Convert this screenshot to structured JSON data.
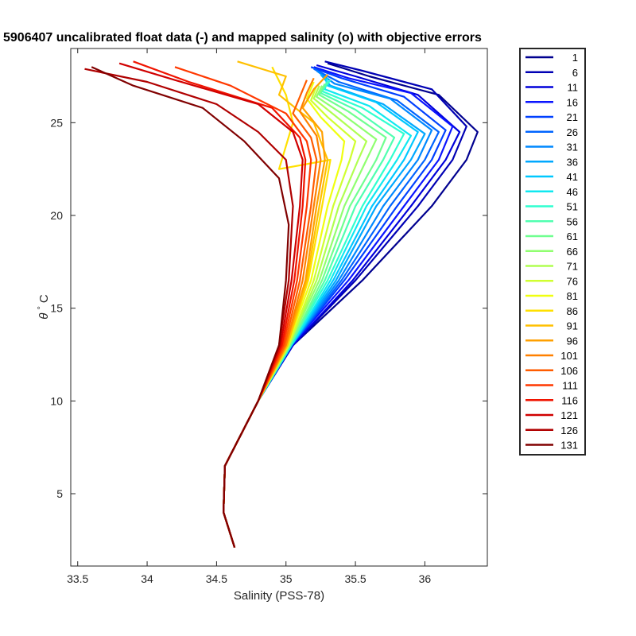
{
  "chart_data": {
    "type": "line",
    "title": "5906407 uncalibrated float data (-) and mapped salinity (o) with objective errors",
    "xlabel": "Salinity (PSS-78)",
    "ylabel_symbol": "θ",
    "ylabel_degree": "°",
    "ylabel_unit": "C",
    "xlim": [
      33.45,
      36.45
    ],
    "ylim": [
      1.1,
      29.0
    ],
    "xticks": [
      33.5,
      34,
      34.5,
      35,
      35.5,
      36
    ],
    "xtick_labels": [
      "33.5",
      "34",
      "34.5",
      "35",
      "35.5",
      "36"
    ],
    "yticks": [
      5,
      10,
      15,
      20,
      25
    ],
    "ytick_labels": [
      "5",
      "10",
      "15",
      "20",
      "25"
    ],
    "grid": false,
    "legend_placement": "outside-right",
    "legend": [
      {
        "label": "1",
        "color": "#00008f"
      },
      {
        "label": "6",
        "color": "#0000b4"
      },
      {
        "label": "11",
        "color": "#0000da"
      },
      {
        "label": "16",
        "color": "#0a14ff"
      },
      {
        "label": "21",
        "color": "#0040ff"
      },
      {
        "label": "26",
        "color": "#0064ff"
      },
      {
        "label": "31",
        "color": "#0088ff"
      },
      {
        "label": "36",
        "color": "#00a8ff"
      },
      {
        "label": "41",
        "color": "#00c8ff"
      },
      {
        "label": "46",
        "color": "#10e8f0"
      },
      {
        "label": "51",
        "color": "#30ffd0"
      },
      {
        "label": "56",
        "color": "#50ffb0"
      },
      {
        "label": "61",
        "color": "#70ff90"
      },
      {
        "label": "66",
        "color": "#90ff70"
      },
      {
        "label": "71",
        "color": "#b0ff50"
      },
      {
        "label": "76",
        "color": "#d0ff30"
      },
      {
        "label": "81",
        "color": "#f0ff10"
      },
      {
        "label": "86",
        "color": "#ffe000"
      },
      {
        "label": "91",
        "color": "#ffc000"
      },
      {
        "label": "96",
        "color": "#ffa000"
      },
      {
        "label": "101",
        "color": "#ff8000"
      },
      {
        "label": "106",
        "color": "#ff5c00"
      },
      {
        "label": "111",
        "color": "#ff3800"
      },
      {
        "label": "116",
        "color": "#f01400"
      },
      {
        "label": "121",
        "color": "#d00000"
      },
      {
        "label": "126",
        "color": "#b00000"
      },
      {
        "label": "131",
        "color": "#800000"
      }
    ],
    "series": [
      {
        "name": "1",
        "color": "#00008f",
        "x": [
          34.63,
          34.55,
          34.56,
          34.8,
          35.05,
          35.55,
          36.05,
          36.3,
          36.38,
          36.1,
          35.6,
          35.3
        ],
        "y": [
          2.1,
          4.0,
          6.5,
          10.0,
          13.0,
          16.5,
          20.5,
          23.0,
          24.5,
          26.5,
          27.5,
          28.2
        ]
      },
      {
        "name": "6",
        "color": "#0000b4",
        "x": [
          34.63,
          34.55,
          34.56,
          34.8,
          35.05,
          35.5,
          35.95,
          36.2,
          36.3,
          36.05,
          35.55,
          35.28
        ],
        "y": [
          2.1,
          4.0,
          6.5,
          10.0,
          13.0,
          16.5,
          20.5,
          23.0,
          24.8,
          26.8,
          27.8,
          28.3
        ]
      },
      {
        "name": "11",
        "color": "#0000da",
        "x": [
          34.63,
          34.55,
          34.56,
          34.8,
          35.05,
          35.48,
          35.9,
          36.15,
          36.25,
          35.95,
          35.5,
          35.22
        ],
        "y": [
          2.1,
          4.0,
          6.5,
          10.0,
          13.0,
          16.5,
          20.5,
          23.0,
          24.5,
          26.5,
          27.5,
          28.1
        ]
      },
      {
        "name": "16",
        "color": "#0a14ff",
        "x": [
          34.63,
          34.55,
          34.56,
          34.8,
          35.04,
          35.45,
          35.85,
          36.1,
          36.2,
          35.9,
          35.45,
          35.2
        ],
        "y": [
          2.1,
          4.0,
          6.5,
          10.0,
          13.0,
          16.5,
          20.5,
          23.0,
          24.8,
          26.6,
          27.4,
          28.0
        ]
      },
      {
        "name": "21",
        "color": "#0040ff",
        "x": [
          34.63,
          34.55,
          34.56,
          34.8,
          35.04,
          35.42,
          35.8,
          36.05,
          36.15,
          35.85,
          35.4,
          35.18
        ],
        "y": [
          2.1,
          4.0,
          6.5,
          10.0,
          13.0,
          16.5,
          20.5,
          23.0,
          24.6,
          26.4,
          27.4,
          28.0
        ]
      },
      {
        "name": "26",
        "color": "#0064ff",
        "x": [
          34.63,
          34.55,
          34.56,
          34.8,
          35.04,
          35.4,
          35.75,
          36.0,
          36.1,
          35.8,
          35.38,
          35.2
        ],
        "y": [
          2.1,
          4.0,
          6.5,
          10.0,
          13.0,
          16.5,
          20.5,
          23.0,
          24.5,
          26.2,
          27.2,
          27.9
        ]
      },
      {
        "name": "31",
        "color": "#0088ff",
        "x": [
          34.63,
          34.55,
          34.56,
          34.8,
          35.04,
          35.38,
          35.7,
          35.95,
          36.05,
          35.75,
          35.35,
          35.22
        ],
        "y": [
          2.1,
          4.0,
          6.5,
          10.0,
          13.0,
          16.5,
          20.5,
          23.0,
          24.6,
          26.3,
          27.1,
          27.8
        ]
      },
      {
        "name": "36",
        "color": "#00a8ff",
        "x": [
          34.63,
          34.55,
          34.56,
          34.8,
          35.04,
          35.36,
          35.65,
          35.9,
          36.0,
          35.7,
          35.32,
          35.25
        ],
        "y": [
          2.1,
          4.0,
          6.5,
          10.0,
          13.0,
          16.5,
          20.5,
          23.0,
          24.4,
          26.0,
          27.0,
          27.6
        ]
      },
      {
        "name": "41",
        "color": "#00c8ff",
        "x": [
          34.63,
          34.55,
          34.56,
          34.8,
          35.04,
          35.34,
          35.62,
          35.85,
          35.95,
          35.65,
          35.3,
          35.28
        ],
        "y": [
          2.1,
          4.0,
          6.5,
          10.0,
          13.0,
          16.5,
          20.5,
          23.0,
          24.5,
          26.1,
          27.0,
          27.5
        ]
      },
      {
        "name": "46",
        "color": "#10e8f0",
        "x": [
          34.63,
          34.55,
          34.56,
          34.8,
          35.04,
          35.32,
          35.58,
          35.8,
          35.9,
          35.6,
          35.28,
          35.3
        ],
        "y": [
          2.1,
          4.0,
          6.5,
          10.0,
          13.0,
          16.5,
          20.5,
          23.0,
          24.3,
          25.9,
          26.8,
          27.4
        ]
      },
      {
        "name": "51",
        "color": "#30ffd0",
        "x": [
          34.63,
          34.55,
          34.56,
          34.8,
          35.03,
          35.3,
          35.55,
          35.75,
          35.85,
          35.55,
          35.26,
          35.32
        ],
        "y": [
          2.1,
          4.0,
          6.5,
          10.0,
          13.0,
          16.5,
          20.5,
          23.0,
          24.4,
          25.8,
          26.7,
          27.3
        ]
      },
      {
        "name": "56",
        "color": "#50ffb0",
        "x": [
          34.63,
          34.55,
          34.56,
          34.8,
          35.03,
          35.28,
          35.5,
          35.7,
          35.78,
          35.5,
          35.25,
          35.3
        ],
        "y": [
          2.1,
          4.0,
          6.5,
          10.0,
          13.0,
          16.5,
          20.5,
          23.0,
          24.2,
          25.7,
          26.6,
          27.2
        ]
      },
      {
        "name": "61",
        "color": "#70ff90",
        "x": [
          34.63,
          34.55,
          34.56,
          34.8,
          35.03,
          35.26,
          35.46,
          35.65,
          35.72,
          35.45,
          35.24,
          35.28
        ],
        "y": [
          2.1,
          4.0,
          6.5,
          10.0,
          13.0,
          16.5,
          20.5,
          23.0,
          24.2,
          25.6,
          26.5,
          27.1
        ]
      },
      {
        "name": "66",
        "color": "#90ff70",
        "x": [
          34.63,
          34.55,
          34.56,
          34.8,
          35.02,
          35.24,
          35.42,
          35.58,
          35.65,
          35.4,
          35.22,
          35.26
        ],
        "y": [
          2.1,
          4.0,
          6.5,
          10.0,
          13.0,
          16.5,
          20.5,
          23.0,
          24.1,
          25.5,
          26.4,
          27.0
        ]
      },
      {
        "name": "71",
        "color": "#b0ff50",
        "x": [
          34.63,
          34.55,
          34.56,
          34.8,
          35.02,
          35.22,
          35.38,
          35.52,
          35.58,
          35.35,
          35.2,
          35.24
        ],
        "y": [
          2.1,
          4.0,
          6.5,
          10.0,
          13.0,
          16.5,
          20.5,
          23.0,
          24.0,
          25.4,
          26.3,
          27.0
        ]
      },
      {
        "name": "76",
        "color": "#d0ff30",
        "x": [
          34.63,
          34.55,
          34.56,
          34.8,
          35.02,
          35.2,
          35.34,
          35.46,
          35.5,
          35.3,
          35.18,
          35.22
        ],
        "y": [
          2.1,
          4.0,
          6.5,
          10.0,
          13.0,
          16.5,
          20.5,
          23.0,
          24.0,
          25.3,
          26.2,
          27.0
        ]
      },
      {
        "name": "81",
        "color": "#f0ff10",
        "x": [
          34.63,
          34.55,
          34.56,
          34.8,
          35.01,
          35.18,
          35.3,
          35.4,
          35.42,
          35.25,
          35.15,
          35.2
        ],
        "y": [
          2.1,
          4.0,
          6.5,
          10.0,
          13.0,
          16.5,
          20.5,
          23.0,
          24.0,
          25.3,
          26.3,
          27.2
        ]
      },
      {
        "name": "86",
        "color": "#ffe000",
        "x": [
          34.63,
          34.55,
          34.56,
          34.8,
          35.01,
          35.16,
          35.26,
          35.32,
          34.95,
          35.05,
          35.0,
          34.9
        ],
        "y": [
          2.1,
          4.0,
          6.5,
          10.0,
          13.0,
          16.5,
          20.5,
          23.0,
          22.5,
          25.0,
          26.5,
          28.0
        ]
      },
      {
        "name": "91",
        "color": "#ffc000",
        "x": [
          34.63,
          34.55,
          34.56,
          34.8,
          35.01,
          35.15,
          35.24,
          35.3,
          35.2,
          34.95,
          35.0,
          34.65
        ],
        "y": [
          2.1,
          4.0,
          6.5,
          10.0,
          13.0,
          16.5,
          20.5,
          23.0,
          25.0,
          26.5,
          27.5,
          28.3
        ]
      },
      {
        "name": "96",
        "color": "#ffa000",
        "x": [
          34.63,
          34.55,
          34.56,
          34.8,
          35.0,
          35.14,
          35.22,
          35.28,
          35.26,
          35.12,
          35.2,
          35.3
        ],
        "y": [
          2.1,
          4.0,
          6.5,
          10.0,
          13.0,
          16.5,
          20.5,
          23.0,
          24.5,
          25.8,
          26.8,
          27.6
        ]
      },
      {
        "name": "101",
        "color": "#ff8000",
        "x": [
          34.63,
          34.55,
          34.56,
          34.8,
          35.0,
          35.12,
          35.2,
          35.25,
          35.22,
          35.1,
          35.15,
          35.2
        ],
        "y": [
          2.1,
          4.0,
          6.5,
          10.0,
          13.0,
          16.5,
          20.5,
          23.0,
          24.3,
          25.6,
          26.6,
          27.4
        ]
      },
      {
        "name": "106",
        "color": "#ff5c00",
        "x": [
          34.63,
          34.55,
          34.56,
          34.8,
          34.99,
          35.1,
          35.18,
          35.22,
          35.18,
          35.05,
          35.1,
          35.15
        ],
        "y": [
          2.1,
          4.0,
          6.5,
          10.0,
          13.0,
          16.5,
          20.5,
          23.0,
          24.2,
          25.5,
          26.4,
          27.3
        ]
      },
      {
        "name": "111",
        "color": "#ff3800",
        "x": [
          34.63,
          34.55,
          34.56,
          34.8,
          34.98,
          35.08,
          35.15,
          35.18,
          35.15,
          35.0,
          34.6,
          34.2
        ],
        "y": [
          2.1,
          4.0,
          6.5,
          10.0,
          13.0,
          16.5,
          20.5,
          23.0,
          24.0,
          25.5,
          27.0,
          28.0
        ]
      },
      {
        "name": "116",
        "color": "#f01400",
        "x": [
          34.63,
          34.55,
          34.56,
          34.8,
          34.97,
          35.06,
          35.12,
          35.14,
          35.1,
          34.9,
          34.3,
          33.9
        ],
        "y": [
          2.1,
          4.0,
          6.5,
          10.0,
          13.0,
          16.5,
          20.5,
          23.0,
          24.2,
          25.8,
          27.2,
          28.3
        ]
      },
      {
        "name": "121",
        "color": "#d00000",
        "x": [
          34.63,
          34.55,
          34.56,
          34.8,
          34.96,
          35.04,
          35.1,
          35.12,
          35.05,
          34.8,
          34.2,
          33.8
        ],
        "y": [
          2.1,
          4.0,
          6.5,
          10.0,
          13.0,
          16.5,
          20.5,
          23.0,
          24.5,
          26.0,
          27.3,
          28.2
        ]
      },
      {
        "name": "126",
        "color": "#b00000",
        "x": [
          34.63,
          34.55,
          34.56,
          34.8,
          34.95,
          35.02,
          35.05,
          35.0,
          34.8,
          34.5,
          34.0,
          33.55
        ],
        "y": [
          2.1,
          4.0,
          6.5,
          10.0,
          13.0,
          16.5,
          20.5,
          23.0,
          24.5,
          26.0,
          27.2,
          27.9
        ]
      },
      {
        "name": "131",
        "color": "#800000",
        "x": [
          34.63,
          34.55,
          34.56,
          34.8,
          34.95,
          35.0,
          35.02,
          34.95,
          34.7,
          34.4,
          33.9,
          33.6
        ],
        "y": [
          2.1,
          4.0,
          6.5,
          10.0,
          13.0,
          16.5,
          19.5,
          22.0,
          24.0,
          25.8,
          27.0,
          28.0
        ]
      }
    ]
  }
}
